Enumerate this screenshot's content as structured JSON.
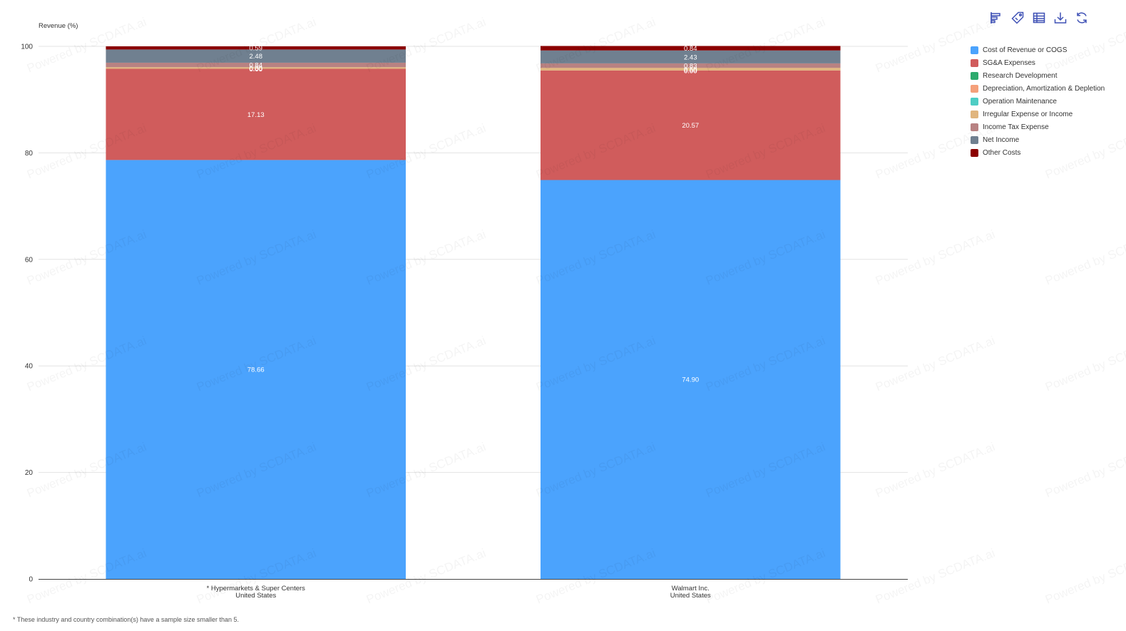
{
  "toolbar": {
    "icons": [
      "bar-chart-icon",
      "tag-icon",
      "table-icon",
      "download-icon",
      "refresh-icon"
    ],
    "color": "#3f51b5"
  },
  "footnote": "* These industry and country combination(s) have a sample size smaller than 5.",
  "watermark_text": "Powered by SCDATA.ai",
  "chart_data": {
    "type": "bar",
    "stacked": true,
    "ylabel": "Revenue (%)",
    "ylim": [
      0,
      100
    ],
    "yticks": [
      0,
      20,
      40,
      60,
      80,
      100
    ],
    "grid": true,
    "legend_position": "right",
    "categories": [
      {
        "line1": "* Hypermarkets & Super Centers",
        "line2": "United States"
      },
      {
        "line1": "Walmart Inc.",
        "line2": "United States"
      }
    ],
    "series": [
      {
        "name": "Cost of Revenue or COGS",
        "color": "#4ba3fd",
        "values": [
          78.66,
          74.9
        ],
        "labels": [
          "78.66",
          "74.90"
        ]
      },
      {
        "name": "SG&A Expenses",
        "color": "#d05c5c",
        "values": [
          17.13,
          20.57
        ],
        "labels": [
          "17.13",
          "20.57"
        ]
      },
      {
        "name": "Research Development",
        "color": "#2eaa6e",
        "values": [
          0.0,
          0.0
        ],
        "labels": [
          "0.00",
          "0.00"
        ]
      },
      {
        "name": "Depreciation, Amortization & Depletion",
        "color": "#f5a07a",
        "values": [
          0.0,
          0.0
        ],
        "labels": [
          "0.00",
          "0.00"
        ]
      },
      {
        "name": "Operation Maintenance",
        "color": "#4ecdc4",
        "values": [
          0.0,
          0.0
        ],
        "labels": [
          "0.00",
          "0.00"
        ]
      },
      {
        "name": "Irregular Expense or Income",
        "color": "#e0b57e",
        "values": [
          0.3,
          0.5
        ],
        "labels": [
          "0.30",
          "0.50"
        ]
      },
      {
        "name": "Income Tax Expense",
        "color": "#b88282",
        "values": [
          0.84,
          0.83
        ],
        "labels": [
          "0.84",
          "0.83"
        ]
      },
      {
        "name": "Net Income",
        "color": "#708090",
        "values": [
          2.48,
          2.43
        ],
        "labels": [
          "2.48",
          "2.43"
        ]
      },
      {
        "name": "Other Costs",
        "color": "#8b0000",
        "values": [
          0.59,
          0.84
        ],
        "labels": [
          "0.59",
          "0.84"
        ]
      }
    ]
  }
}
